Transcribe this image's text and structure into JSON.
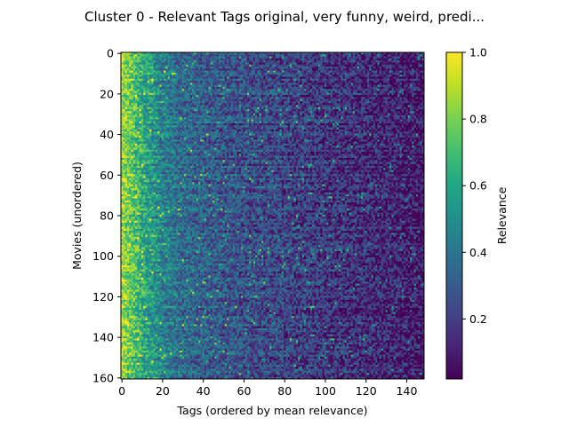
{
  "chart_data": {
    "type": "heatmap",
    "title": "Cluster 0 - Relevant Tags original, very funny, weird, predi...",
    "xlabel": "Tags (ordered by mean relevance)",
    "ylabel": "Movies (unordered)",
    "xlim": [
      0,
      148
    ],
    "ylim": [
      160,
      0
    ],
    "n_rows": 161,
    "n_cols": 149,
    "x_ticks": [
      0,
      20,
      40,
      60,
      80,
      100,
      120,
      140
    ],
    "y_ticks": [
      0,
      20,
      40,
      60,
      80,
      100,
      120,
      140,
      160
    ],
    "colorbar": {
      "label": "Relevance",
      "min": 0.02,
      "max": 1.0,
      "ticks": [
        0.2,
        0.4,
        0.6,
        0.8,
        1.0
      ],
      "colormap": "viridis"
    },
    "description_profile": {
      "mean_relevance_by_tag_index": [
        [
          0,
          0.85
        ],
        [
          5,
          0.75
        ],
        [
          10,
          0.62
        ],
        [
          20,
          0.45
        ],
        [
          30,
          0.35
        ],
        [
          50,
          0.28
        ],
        [
          80,
          0.22
        ],
        [
          110,
          0.16
        ],
        [
          148,
          0.08
        ]
      ]
    }
  }
}
